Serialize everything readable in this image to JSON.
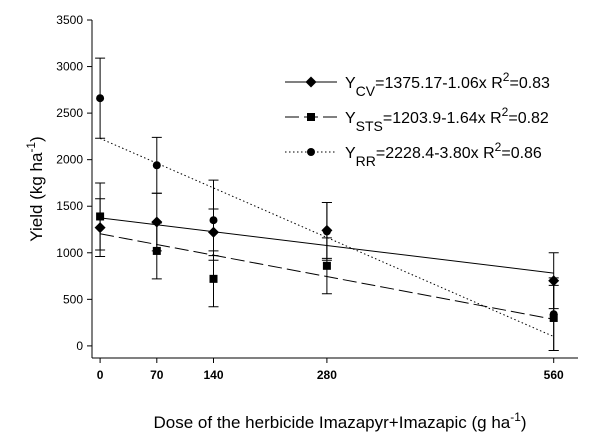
{
  "chart_data": {
    "type": "scatter",
    "xlabel": [
      "Dose of the herbicide Imazapyr+Imazapic (g ha",
      "-1",
      ")"
    ],
    "ylabel": [
      "Yield (kg ha",
      "-1",
      ")"
    ],
    "x": [
      0,
      70,
      140,
      280,
      560
    ],
    "xlim": [
      -10,
      590
    ],
    "ylim": [
      -130,
      3500
    ],
    "xticks": [
      0,
      70,
      140,
      280,
      560
    ],
    "yticks": [
      0,
      500,
      1000,
      1500,
      2000,
      2500,
      3000,
      3500
    ],
    "series": [
      {
        "name": [
          "Y",
          "CV",
          "=1375.17-1.06x  R",
          "2",
          "=0.83"
        ],
        "color": "#000000",
        "marker": "diamond",
        "dash": "none",
        "values": [
          1270,
          1330,
          1220,
          1240,
          700
        ],
        "errors": [
          310,
          310,
          250,
          300,
          300
        ],
        "fit_x": [
          0,
          560
        ],
        "fit_y": [
          1375.17,
          781.57
        ]
      },
      {
        "name": [
          "Y",
          "STS",
          "=1203.9-1.64x  R",
          "2",
          "=0.82"
        ],
        "color": "#000000",
        "marker": "square",
        "dash": "14 5",
        "values": [
          1390,
          1020,
          720,
          860,
          300
        ],
        "errors": [
          360,
          300,
          300,
          300,
          350
        ],
        "fit_x": [
          0,
          560
        ],
        "fit_y": [
          1203.9,
          285.5
        ]
      },
      {
        "name": [
          "Y",
          "RR",
          "=2228.4-3.80x  R",
          "2",
          "=0.86"
        ],
        "color": "#000000",
        "marker": "circle",
        "dash": "1.5 2.5",
        "values": [
          2660,
          1940,
          1350,
          1230,
          340
        ],
        "errors": [
          430,
          300,
          430,
          310,
          390
        ],
        "fit_x": [
          0,
          560
        ],
        "fit_y": [
          2228.4,
          100.4
        ]
      }
    ]
  }
}
